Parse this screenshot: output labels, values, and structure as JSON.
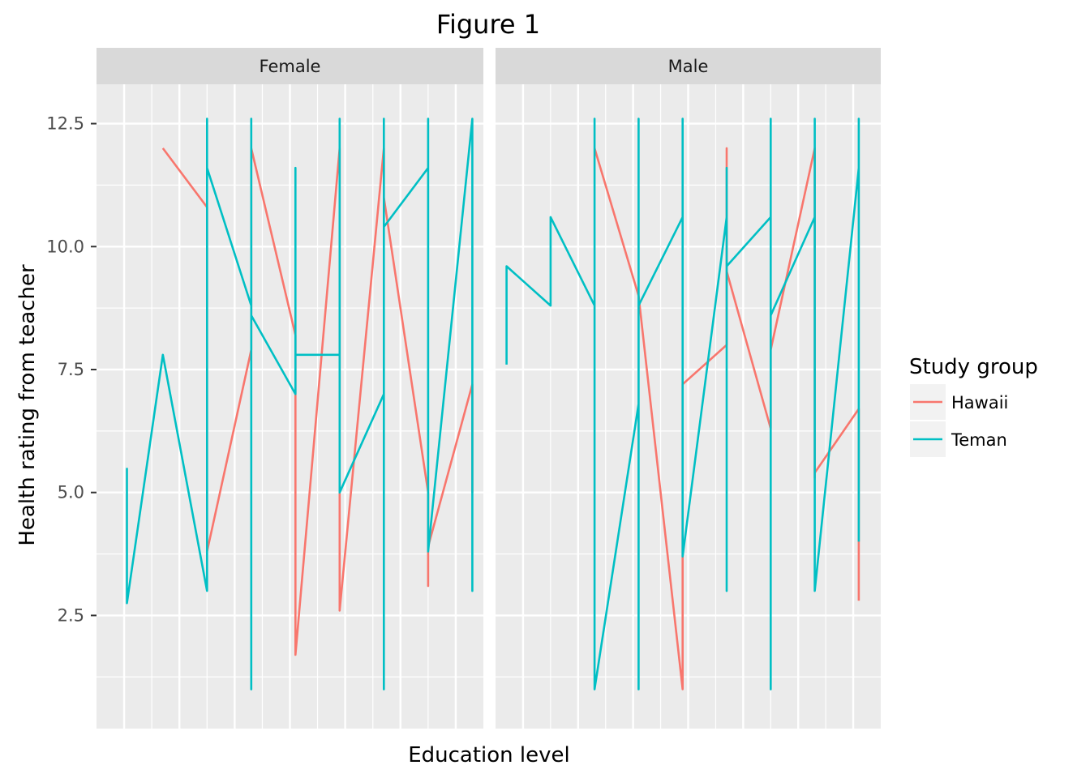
{
  "chart_data": {
    "type": "line",
    "title": "Figure 1",
    "xlabel": "Education level",
    "ylabel": "Health rating from teacher",
    "ylim": [
      0.2,
      13.3
    ],
    "y_ticks": [
      2.5,
      5.0,
      7.5,
      10.0,
      12.5
    ],
    "y_tick_labels": [
      "2.5",
      "5.0",
      "7.5",
      "10.0",
      "12.5"
    ],
    "x_tick_labels": [],
    "xlim": [
      0.5,
      7.5
    ],
    "grid": true,
    "legend_title": "Study group",
    "legend_position": "right",
    "colors": {
      "Hawaii": "#F8766D",
      "Teman": "#00BFC4",
      "panel_bg": "#EBEBEB",
      "strip_bg": "#D9D9D9",
      "grid": "#FFFFFF"
    },
    "facets": [
      {
        "label": "Female",
        "series": [
          {
            "name": "Hawaii",
            "x": [
              1.7,
              2.5,
              2.5,
              3.3,
              3.3,
              4.1,
              4.1,
              4.9,
              4.9,
              4.9,
              5.7,
              5.7,
              6.5,
              6.5,
              6.5,
              7.3,
              7.3
            ],
            "y": [
              12.0,
              10.8,
              3.8,
              7.9,
              12.0,
              8.2,
              1.7,
              12.0,
              4.0,
              2.6,
              12.0,
              11.0,
              5.0,
              3.1,
              3.9,
              7.2,
              5.0
            ]
          },
          {
            "name": "Teman",
            "x": [
              1.05,
              1.05,
              1.05,
              1.7,
              2.5,
              2.5,
              2.5,
              3.3,
              3.3,
              3.3,
              3.3,
              4.1,
              4.1,
              4.1,
              4.1,
              4.9,
              4.9,
              4.9,
              5.7,
              5.7,
              5.7,
              5.7,
              6.5,
              6.5,
              6.5,
              7.3,
              7.3,
              7.3
            ],
            "y": [
              5.5,
              2.75,
              2.75,
              7.8,
              3.0,
              12.6,
              11.6,
              8.8,
              12.6,
              1.0,
              8.6,
              7.0,
              7.0,
              11.6,
              7.8,
              7.8,
              12.6,
              5.0,
              7.0,
              12.6,
              1.0,
              10.4,
              11.6,
              12.6,
              3.8,
              12.6,
              3.0,
              7.5
            ]
          }
        ]
      },
      {
        "label": "Male",
        "series": [
          {
            "name": "Hawaii",
            "x": [
              2.3,
              3.1,
              3.9,
              3.9,
              3.9,
              4.7,
              4.7,
              4.7,
              5.5,
              5.5,
              6.3,
              6.3,
              6.3,
              7.1,
              7.1
            ],
            "y": [
              12.0,
              9.0,
              1.0,
              3.7,
              7.2,
              8.0,
              12.0,
              9.5,
              6.3,
              7.9,
              12.0,
              5.3,
              5.4,
              6.7,
              2.8
            ]
          },
          {
            "name": "Teman",
            "x": [
              0.7,
              0.7,
              1.5,
              1.5,
              2.3,
              2.3,
              2.3,
              3.1,
              3.1,
              3.1,
              3.1,
              3.9,
              3.9,
              3.9,
              4.7,
              4.7,
              4.7,
              4.7,
              5.5,
              5.5,
              5.5,
              5.5,
              6.3,
              6.3,
              6.3,
              7.1,
              7.1,
              7.1
            ],
            "y": [
              7.6,
              9.6,
              8.8,
              10.6,
              8.8,
              12.6,
              1.0,
              6.8,
              12.6,
              1.0,
              8.8,
              10.6,
              12.6,
              3.7,
              10.6,
              3.0,
              11.6,
              9.6,
              10.6,
              12.6,
              1.0,
              8.6,
              10.6,
              12.6,
              3.0,
              11.6,
              12.6,
              4.0
            ]
          }
        ]
      }
    ]
  }
}
